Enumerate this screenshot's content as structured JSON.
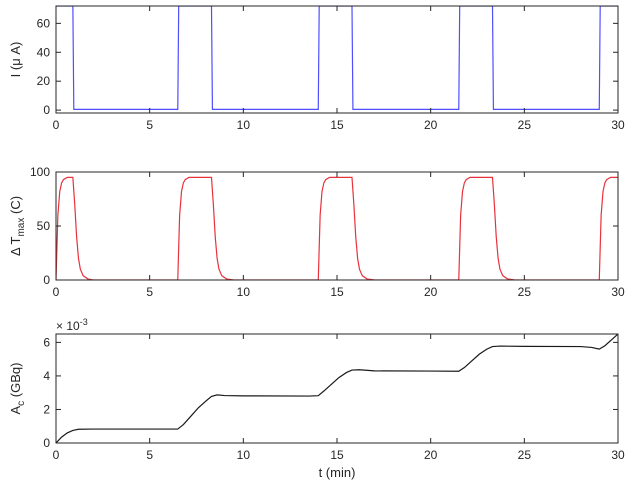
{
  "chart_data": [
    {
      "type": "line",
      "title": "",
      "xlabel": "",
      "ylabel": "I (μ A)",
      "xlim": [
        0,
        30
      ],
      "ylim": [
        -2,
        72
      ],
      "xticks": [
        "0",
        "5",
        "10",
        "15",
        "20",
        "25",
        "30"
      ],
      "yticks": [
        "0",
        "20",
        "40",
        "60"
      ],
      "grid": false,
      "series": [
        {
          "color": "#4f4fff",
          "x": [
            0,
            0.9,
            0.95,
            6.5,
            6.55,
            8.3,
            8.35,
            14.0,
            14.05,
            15.8,
            15.85,
            21.5,
            21.55,
            23.3,
            23.35,
            29.0,
            29.05,
            30
          ],
          "y": [
            72,
            72,
            0.5,
            0.5,
            72,
            72,
            0.5,
            0.5,
            72,
            72,
            0.5,
            0.5,
            72,
            72,
            0.5,
            0.5,
            72,
            72
          ]
        }
      ]
    },
    {
      "type": "line",
      "title": "",
      "xlabel": "",
      "ylabel_main": "Δ T",
      "ylabel_sub": "max",
      "ylabel_tail": " (C)",
      "xlim": [
        0,
        30
      ],
      "ylim": [
        0,
        100
      ],
      "xticks": [
        "0",
        "5",
        "10",
        "15",
        "20",
        "25",
        "30"
      ],
      "yticks": [
        "0",
        "50",
        "100"
      ],
      "grid": false,
      "series": [
        {
          "color": "#e8323c",
          "x": [
            0,
            0.05,
            0.1,
            0.2,
            0.3,
            0.4,
            0.6,
            0.9,
            1.0,
            1.1,
            1.2,
            1.3,
            1.45,
            1.7,
            2.0,
            6.5,
            6.55,
            6.6,
            6.7,
            6.8,
            6.9,
            7.1,
            8.3,
            8.4,
            8.5,
            8.6,
            8.7,
            8.85,
            9.1,
            9.5,
            14.0,
            14.05,
            14.1,
            14.2,
            14.3,
            14.4,
            14.6,
            15.8,
            15.9,
            16.0,
            16.1,
            16.2,
            16.35,
            16.6,
            17.0,
            21.5,
            21.55,
            21.6,
            21.7,
            21.8,
            21.9,
            22.1,
            23.3,
            23.4,
            23.5,
            23.6,
            23.7,
            23.85,
            24.1,
            24.5,
            29.0,
            29.05,
            29.1,
            29.2,
            29.3,
            29.4,
            29.6,
            30
          ],
          "y": [
            0,
            30,
            60,
            82,
            90,
            93,
            95,
            95,
            70,
            40,
            20,
            10,
            4,
            1,
            0,
            0,
            30,
            60,
            82,
            90,
            93,
            95,
            95,
            70,
            40,
            20,
            10,
            4,
            1,
            0,
            0,
            30,
            60,
            82,
            90,
            93,
            95,
            95,
            70,
            40,
            20,
            10,
            4,
            1,
            0,
            0,
            30,
            60,
            82,
            90,
            93,
            95,
            95,
            70,
            40,
            20,
            10,
            4,
            1,
            0,
            0,
            30,
            60,
            82,
            90,
            93,
            95,
            95
          ]
        }
      ]
    },
    {
      "type": "line",
      "title": "",
      "xlabel": "t (min)",
      "ylabel_main": "A",
      "ylabel_sub": "c",
      "ylabel_tail": " (GBq)",
      "scale_note_base": "× 10",
      "scale_note_exp": "-3",
      "xlim": [
        0,
        30
      ],
      "ylim": [
        0,
        0.0065
      ],
      "xticks": [
        "0",
        "5",
        "10",
        "15",
        "20",
        "25",
        "30"
      ],
      "yticks": [
        "0",
        "2",
        "4",
        "6"
      ],
      "grid": false,
      "series": [
        {
          "color": "#1a1a1a",
          "x": [
            0,
            0.3,
            0.6,
            0.9,
            1.2,
            2,
            6.5,
            6.8,
            7.2,
            7.6,
            8.0,
            8.3,
            8.6,
            9.0,
            10,
            13.5,
            14.0,
            14.3,
            14.7,
            15.1,
            15.5,
            15.8,
            16.2,
            17,
            20,
            21.5,
            21.8,
            22.2,
            22.6,
            23.0,
            23.3,
            23.7,
            25,
            28,
            28.6,
            29.0,
            29.3,
            29.7,
            30
          ],
          "y": [
            0,
            0.00035,
            0.0006,
            0.00075,
            0.00082,
            0.00083,
            0.00083,
            0.0011,
            0.0016,
            0.0021,
            0.0025,
            0.00278,
            0.00287,
            0.00283,
            0.00281,
            0.0028,
            0.00282,
            0.0031,
            0.0035,
            0.0039,
            0.0042,
            0.00435,
            0.00437,
            0.0043,
            0.00429,
            0.00428,
            0.0045,
            0.0049,
            0.0053,
            0.0056,
            0.00575,
            0.00578,
            0.00576,
            0.00575,
            0.0057,
            0.0056,
            0.0058,
            0.0062,
            0.0065
          ]
        }
      ]
    }
  ]
}
